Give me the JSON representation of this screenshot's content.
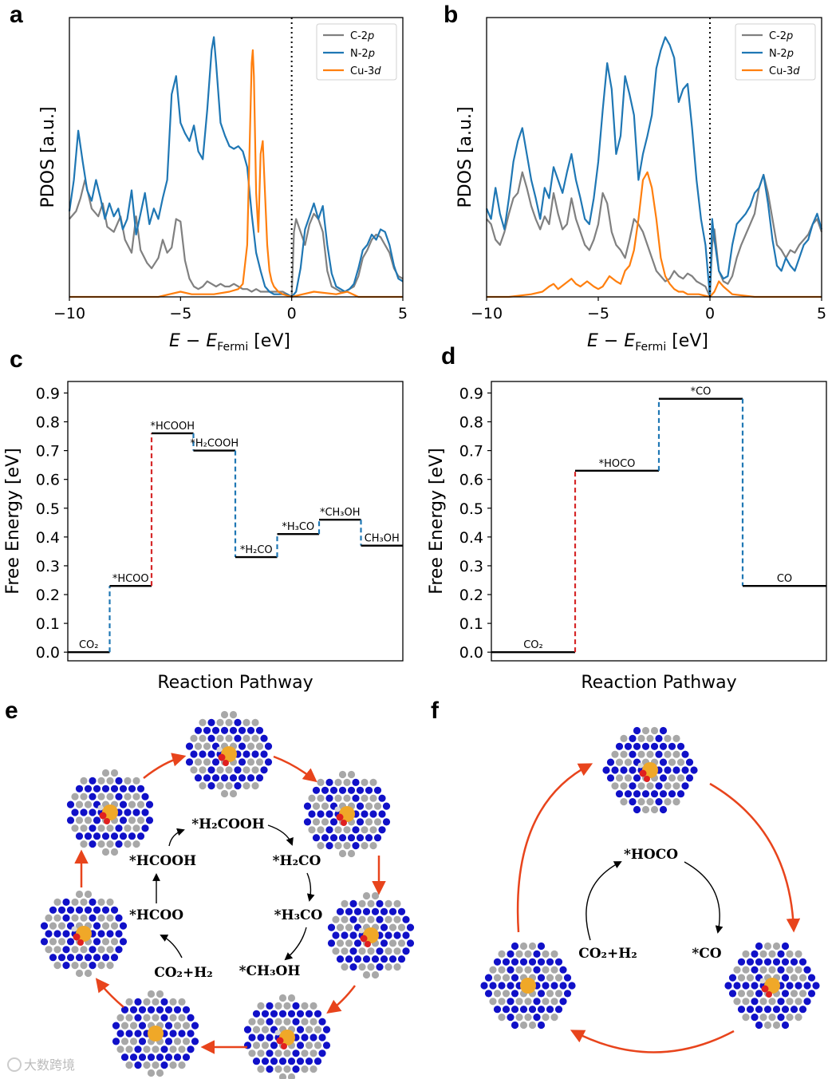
{
  "panels": {
    "a": "a",
    "b": "b",
    "c": "c",
    "d": "d",
    "e": "e",
    "f": "f"
  },
  "chart_data": [
    {
      "id": "a",
      "type": "line",
      "xlabel_main": "E − E",
      "xlabel_sub": "Fermi",
      "xlabel_unit": " [eV]",
      "ylabel": "PDOS [a.u.]",
      "xlim": [
        -10,
        5
      ],
      "ylim": [
        0,
        1.0
      ],
      "xticks": [
        "−10",
        "−5",
        "0",
        "5"
      ],
      "xtick_values": [
        -10,
        -5,
        0,
        5
      ],
      "fermi_line": 0,
      "series": [
        {
          "name": "C-2p",
          "color": "#808080",
          "x": [
            -10,
            -9.7,
            -9.5,
            -9.3,
            -9.0,
            -8.7,
            -8.5,
            -8.3,
            -8.0,
            -7.7,
            -7.5,
            -7.2,
            -7.0,
            -6.8,
            -6.5,
            -6.3,
            -6.0,
            -5.8,
            -5.6,
            -5.4,
            -5.2,
            -5.0,
            -4.8,
            -4.6,
            -4.4,
            -4.2,
            -4.0,
            -3.8,
            -3.6,
            -3.4,
            -3.2,
            -3.0,
            -2.8,
            -2.6,
            -2.4,
            -2.2,
            -2.0,
            -1.8,
            -1.6,
            -1.4,
            -1.2,
            -1.0,
            -0.8,
            -0.6,
            -0.4,
            -0.2,
            0.0,
            0.1,
            0.2,
            0.4,
            0.6,
            0.8,
            1.0,
            1.2,
            1.4,
            1.6,
            1.8,
            2.0,
            2.2,
            2.4,
            2.6,
            2.8,
            3.0,
            3.2,
            3.4,
            3.6,
            3.8,
            4.0,
            4.2,
            4.4,
            4.6,
            4.8,
            5.0
          ],
          "y": [
            0.3,
            0.33,
            0.38,
            0.45,
            0.34,
            0.31,
            0.36,
            0.27,
            0.25,
            0.31,
            0.22,
            0.17,
            0.31,
            0.18,
            0.13,
            0.11,
            0.15,
            0.22,
            0.17,
            0.19,
            0.3,
            0.29,
            0.14,
            0.07,
            0.04,
            0.03,
            0.04,
            0.06,
            0.05,
            0.04,
            0.05,
            0.04,
            0.04,
            0.05,
            0.04,
            0.03,
            0.03,
            0.02,
            0.03,
            0.02,
            0.02,
            0.02,
            0.02,
            0.02,
            0.02,
            0.01,
            0.0,
            0.25,
            0.3,
            0.25,
            0.2,
            0.28,
            0.32,
            0.3,
            0.25,
            0.1,
            0.04,
            0.03,
            0.02,
            0.02,
            0.03,
            0.04,
            0.08,
            0.15,
            0.18,
            0.22,
            0.24,
            0.23,
            0.2,
            0.17,
            0.11,
            0.08,
            0.07
          ]
        },
        {
          "name": "N-2p",
          "color": "#1f77b4",
          "x": [
            -10,
            -9.8,
            -9.6,
            -9.4,
            -9.2,
            -9.0,
            -8.8,
            -8.6,
            -8.4,
            -8.2,
            -8.0,
            -7.8,
            -7.6,
            -7.4,
            -7.2,
            -7.0,
            -6.8,
            -6.6,
            -6.4,
            -6.2,
            -6.0,
            -5.8,
            -5.6,
            -5.4,
            -5.2,
            -5.0,
            -4.8,
            -4.6,
            -4.4,
            -4.2,
            -4.0,
            -3.8,
            -3.6,
            -3.5,
            -3.4,
            -3.2,
            -3.0,
            -2.8,
            -2.6,
            -2.4,
            -2.2,
            -2.0,
            -1.8,
            -1.6,
            -1.4,
            -1.2,
            -1.0,
            -0.8,
            -0.6,
            -0.4,
            -0.2,
            0.0,
            0.2,
            0.4,
            0.6,
            0.8,
            1.0,
            1.2,
            1.4,
            1.6,
            1.8,
            2.0,
            2.2,
            2.4,
            2.6,
            2.8,
            3.0,
            3.2,
            3.4,
            3.6,
            3.8,
            4.0,
            4.2,
            4.4,
            4.6,
            4.8,
            5.0
          ],
          "y": [
            0.33,
            0.45,
            0.64,
            0.52,
            0.41,
            0.37,
            0.45,
            0.38,
            0.3,
            0.36,
            0.31,
            0.34,
            0.26,
            0.3,
            0.41,
            0.24,
            0.32,
            0.4,
            0.28,
            0.34,
            0.3,
            0.38,
            0.45,
            0.78,
            0.85,
            0.67,
            0.63,
            0.6,
            0.66,
            0.56,
            0.53,
            0.72,
            0.95,
            1.0,
            0.9,
            0.67,
            0.62,
            0.58,
            0.57,
            0.58,
            0.56,
            0.5,
            0.32,
            0.17,
            0.1,
            0.04,
            0.02,
            0.01,
            0.01,
            0.01,
            0.01,
            0.0,
            0.02,
            0.11,
            0.26,
            0.31,
            0.36,
            0.3,
            0.35,
            0.2,
            0.09,
            0.04,
            0.03,
            0.02,
            0.03,
            0.05,
            0.11,
            0.18,
            0.2,
            0.24,
            0.22,
            0.26,
            0.25,
            0.2,
            0.12,
            0.07,
            0.06
          ]
        },
        {
          "name": "Cu-3d",
          "color": "#ff7f0e",
          "x": [
            -10,
            -8,
            -6,
            -5.5,
            -5.0,
            -4.5,
            -3.5,
            -2.8,
            -2.4,
            -2.2,
            -2.0,
            -1.9,
            -1.8,
            -1.75,
            -1.7,
            -1.6,
            -1.5,
            -1.4,
            -1.3,
            -1.2,
            -1.1,
            -1.0,
            -0.9,
            -0.8,
            -0.6,
            -0.4,
            0.0,
            0.5,
            1.0,
            2.0,
            2.5,
            3.0,
            5.0
          ],
          "y": [
            0.0,
            0.0,
            0.0,
            0.01,
            0.02,
            0.01,
            0.01,
            0.02,
            0.03,
            0.05,
            0.2,
            0.55,
            0.9,
            0.95,
            0.85,
            0.4,
            0.25,
            0.55,
            0.6,
            0.4,
            0.2,
            0.1,
            0.06,
            0.04,
            0.02,
            0.01,
            0.0,
            0.01,
            0.02,
            0.01,
            0.02,
            0.0,
            0.0
          ]
        }
      ]
    },
    {
      "id": "b",
      "type": "line",
      "xlabel_main": "E − E",
      "xlabel_sub": "Fermi",
      "xlabel_unit": " [eV]",
      "ylabel": "PDOS [a.u.]",
      "xlim": [
        -10,
        5
      ],
      "ylim": [
        0,
        1.0
      ],
      "xticks": [
        "−10",
        "−5",
        "0",
        "5"
      ],
      "xtick_values": [
        -10,
        -5,
        0,
        5
      ],
      "fermi_line": 0,
      "series": [
        {
          "name": "C-2p",
          "color": "#808080",
          "x": [
            -10,
            -9.8,
            -9.6,
            -9.4,
            -9.2,
            -9.0,
            -8.8,
            -8.6,
            -8.4,
            -8.2,
            -8.0,
            -7.8,
            -7.6,
            -7.4,
            -7.2,
            -7.0,
            -6.8,
            -6.6,
            -6.4,
            -6.2,
            -6.0,
            -5.8,
            -5.6,
            -5.4,
            -5.2,
            -5.0,
            -4.8,
            -4.6,
            -4.4,
            -4.2,
            -4.0,
            -3.8,
            -3.6,
            -3.4,
            -3.2,
            -3.0,
            -2.8,
            -2.6,
            -2.4,
            -2.2,
            -2.0,
            -1.8,
            -1.6,
            -1.4,
            -1.2,
            -1.0,
            -0.8,
            -0.6,
            -0.4,
            -0.2,
            0.0,
            0.1,
            0.2,
            0.4,
            0.6,
            0.8,
            1.0,
            1.2,
            1.4,
            1.6,
            1.8,
            2.0,
            2.2,
            2.4,
            2.6,
            2.8,
            3.0,
            3.2,
            3.4,
            3.6,
            3.8,
            4.0,
            4.2,
            4.4,
            4.6,
            4.8,
            5.0
          ],
          "y": [
            0.3,
            0.28,
            0.22,
            0.2,
            0.25,
            0.32,
            0.38,
            0.4,
            0.48,
            0.42,
            0.35,
            0.3,
            0.26,
            0.31,
            0.28,
            0.4,
            0.32,
            0.26,
            0.28,
            0.38,
            0.3,
            0.25,
            0.2,
            0.18,
            0.22,
            0.28,
            0.4,
            0.36,
            0.25,
            0.2,
            0.18,
            0.15,
            0.22,
            0.3,
            0.28,
            0.25,
            0.2,
            0.15,
            0.1,
            0.08,
            0.06,
            0.07,
            0.1,
            0.08,
            0.07,
            0.09,
            0.08,
            0.06,
            0.05,
            0.04,
            0.0,
            0.2,
            0.26,
            0.1,
            0.06,
            0.05,
            0.08,
            0.15,
            0.2,
            0.24,
            0.28,
            0.32,
            0.42,
            0.47,
            0.4,
            0.3,
            0.2,
            0.18,
            0.15,
            0.18,
            0.17,
            0.2,
            0.22,
            0.24,
            0.28,
            0.3,
            0.25
          ]
        },
        {
          "name": "N-2p",
          "color": "#1f77b4",
          "x": [
            -10,
            -9.8,
            -9.6,
            -9.4,
            -9.2,
            -9.0,
            -8.8,
            -8.6,
            -8.4,
            -8.2,
            -8.0,
            -7.8,
            -7.6,
            -7.4,
            -7.2,
            -7.0,
            -6.8,
            -6.6,
            -6.4,
            -6.2,
            -6.0,
            -5.8,
            -5.6,
            -5.4,
            -5.2,
            -5.0,
            -4.8,
            -4.6,
            -4.4,
            -4.2,
            -4.0,
            -3.8,
            -3.6,
            -3.4,
            -3.2,
            -3.0,
            -2.8,
            -2.6,
            -2.4,
            -2.2,
            -2.0,
            -1.8,
            -1.6,
            -1.4,
            -1.2,
            -1.0,
            -0.8,
            -0.6,
            -0.4,
            -0.2,
            0.0,
            0.1,
            0.2,
            0.4,
            0.6,
            0.8,
            1.0,
            1.2,
            1.4,
            1.6,
            1.8,
            2.0,
            2.2,
            2.4,
            2.6,
            2.8,
            3.0,
            3.2,
            3.4,
            3.6,
            3.8,
            4.0,
            4.2,
            4.4,
            4.6,
            4.8,
            5.0
          ],
          "y": [
            0.34,
            0.3,
            0.42,
            0.32,
            0.26,
            0.38,
            0.52,
            0.6,
            0.65,
            0.55,
            0.45,
            0.38,
            0.3,
            0.42,
            0.38,
            0.5,
            0.45,
            0.4,
            0.48,
            0.55,
            0.45,
            0.38,
            0.3,
            0.28,
            0.38,
            0.52,
            0.72,
            0.9,
            0.8,
            0.55,
            0.62,
            0.85,
            0.78,
            0.7,
            0.45,
            0.55,
            0.62,
            0.7,
            0.88,
            0.95,
            1.0,
            0.97,
            0.92,
            0.75,
            0.8,
            0.82,
            0.65,
            0.45,
            0.3,
            0.2,
            0.0,
            0.3,
            0.22,
            0.1,
            0.07,
            0.08,
            0.2,
            0.28,
            0.3,
            0.32,
            0.35,
            0.4,
            0.42,
            0.47,
            0.36,
            0.22,
            0.12,
            0.1,
            0.15,
            0.12,
            0.1,
            0.15,
            0.2,
            0.22,
            0.28,
            0.32,
            0.26
          ]
        },
        {
          "name": "Cu-3d",
          "color": "#ff7f0e",
          "x": [
            -10,
            -9.0,
            -8.0,
            -7.5,
            -7.2,
            -7.0,
            -6.8,
            -6.5,
            -6.2,
            -6.0,
            -5.8,
            -5.5,
            -5.2,
            -5.0,
            -4.8,
            -4.5,
            -4.2,
            -4.0,
            -3.8,
            -3.6,
            -3.4,
            -3.2,
            -3.0,
            -2.8,
            -2.6,
            -2.4,
            -2.2,
            -2.0,
            -1.8,
            -1.6,
            -1.4,
            -1.2,
            -1.0,
            -0.5,
            0.0,
            0.2,
            0.4,
            0.6,
            1.0,
            2.0,
            3.0,
            5.0
          ],
          "y": [
            0.0,
            0.0,
            0.01,
            0.02,
            0.04,
            0.05,
            0.03,
            0.05,
            0.07,
            0.05,
            0.04,
            0.06,
            0.04,
            0.03,
            0.04,
            0.08,
            0.06,
            0.05,
            0.1,
            0.12,
            0.18,
            0.3,
            0.45,
            0.48,
            0.42,
            0.3,
            0.15,
            0.08,
            0.05,
            0.03,
            0.02,
            0.02,
            0.01,
            0.01,
            0.0,
            0.02,
            0.06,
            0.04,
            0.01,
            0.0,
            0.0,
            0.0
          ]
        }
      ]
    },
    {
      "id": "c",
      "type": "step",
      "xlabel": "Reaction Pathway",
      "ylabel": "Free Energy [eV]",
      "ylim": [
        -0.03,
        0.94
      ],
      "yticks": [
        "0.0",
        "0.1",
        "0.2",
        "0.3",
        "0.4",
        "0.5",
        "0.6",
        "0.7",
        "0.8",
        "0.9"
      ],
      "ytick_values": [
        0,
        0.1,
        0.2,
        0.3,
        0.4,
        0.5,
        0.6,
        0.7,
        0.8,
        0.9
      ],
      "labels": [
        "CO₂",
        "*HCOO",
        "*HCOOH",
        "*H₂COOH",
        "*H₂CO",
        "*H₃CO",
        "*CH₃OH",
        "CH₃OH"
      ],
      "values": [
        0.0,
        0.23,
        0.76,
        0.7,
        0.33,
        0.41,
        0.46,
        0.37
      ],
      "transition_colors": [
        "#1f77b4",
        "#d62728",
        "#1f77b4",
        "#1f77b4",
        "#1f77b4",
        "#1f77b4",
        "#1f77b4"
      ]
    },
    {
      "id": "d",
      "type": "step",
      "xlabel": "Reaction Pathway",
      "ylabel": "Free Energy [eV]",
      "ylim": [
        -0.03,
        0.94
      ],
      "yticks": [
        "0.0",
        "0.1",
        "0.2",
        "0.3",
        "0.4",
        "0.5",
        "0.6",
        "0.7",
        "0.8",
        "0.9"
      ],
      "ytick_values": [
        0,
        0.1,
        0.2,
        0.3,
        0.4,
        0.5,
        0.6,
        0.7,
        0.8,
        0.9
      ],
      "labels": [
        "CO₂",
        "*HOCO",
        "*CO",
        "CO"
      ],
      "values": [
        0.0,
        0.63,
        0.88,
        0.23
      ],
      "transition_colors": [
        "#d62728",
        "#1f77b4",
        "#1f77b4"
      ]
    }
  ],
  "cycle_e": {
    "steps": [
      "*H₂COOH",
      "*H₂CO",
      "*H₃CO",
      "*CH₃OH",
      "CO₂+H₂",
      "*HCOO",
      "*HCOOH"
    ]
  },
  "cycle_f": {
    "steps": [
      "*HOCO",
      "*CO",
      "CO₂+H₂"
    ]
  },
  "watermark": "大数跨境",
  "colors": {
    "arrow": "#e8441c",
    "nitrogen": "#1010c8",
    "carbon": "#a8a8a8",
    "copper": "#f0a828",
    "oxygen": "#e02020"
  }
}
